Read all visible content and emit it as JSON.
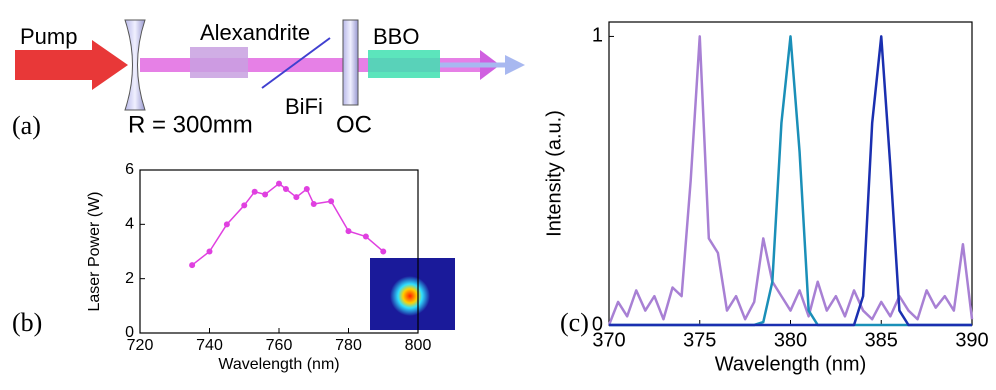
{
  "diagram": {
    "label": "(a)",
    "pump": "Pump",
    "crystal": "Alexandrite",
    "filter": "BiFi",
    "mirror": "R = 300mm",
    "coupler": "OC",
    "doubler": "BBO"
  },
  "chart_data": [
    {
      "type": "line",
      "label": "(b)",
      "x_label": "Wavelength (nm)",
      "y_label": "Laser Power (W)",
      "color": "#e040e0",
      "markers": true,
      "x": [
        735,
        740,
        745,
        750,
        753,
        756,
        760,
        762,
        765,
        768,
        770,
        775,
        780,
        785,
        790
      ],
      "values": [
        2.5,
        3.0,
        4.0,
        4.7,
        5.2,
        5.1,
        5.5,
        5.3,
        5.0,
        5.3,
        4.75,
        4.85,
        3.75,
        3.55,
        3.0
      ],
      "xlim": [
        720,
        800
      ],
      "xticks": [
        720,
        740,
        760,
        780,
        800
      ],
      "ylim": [
        0,
        6
      ],
      "yticks": [
        0,
        2,
        4,
        6
      ]
    },
    {
      "type": "line",
      "label": "(c)",
      "x_label": "Wavelength (nm)",
      "y_label": "Intensity (a.u.)",
      "markers": false,
      "x": [
        370,
        370.5,
        371,
        371.5,
        372,
        372.5,
        373,
        373.5,
        374,
        374.5,
        375,
        375.5,
        376,
        376.5,
        377,
        377.5,
        378,
        378.5,
        379,
        379.5,
        380,
        380.5,
        381,
        381.5,
        382,
        382.5,
        383,
        383.5,
        384,
        384.5,
        385,
        385.5,
        386,
        386.5,
        387,
        387.5,
        388,
        388.5,
        389,
        389.5,
        390
      ],
      "series": [
        {
          "color": "#a880d4",
          "values": [
            0,
            0.08,
            0.03,
            0.12,
            0.05,
            0.1,
            0.02,
            0.13,
            0.1,
            0.5,
            1.0,
            0.3,
            0.25,
            0.05,
            0.1,
            0.02,
            0.08,
            0.3,
            0.15,
            0.1,
            0.05,
            0.12,
            0.03,
            0.15,
            0.05,
            0.1,
            0.03,
            0.12,
            0.05,
            0.02,
            0.08,
            0.03,
            0.1,
            0.05,
            0.02,
            0.12,
            0.06,
            0.1,
            0.05,
            0.28,
            0.02
          ]
        },
        {
          "color": "#1a8fb8",
          "values": [
            0,
            0,
            0,
            0,
            0,
            0,
            0,
            0,
            0,
            0,
            0,
            0,
            0,
            0,
            0,
            0,
            0,
            0.01,
            0.15,
            0.7,
            1.0,
            0.6,
            0.05,
            0,
            0,
            0,
            0,
            0,
            0,
            0,
            0,
            0,
            0,
            0,
            0,
            0,
            0,
            0,
            0,
            0,
            0
          ]
        },
        {
          "color": "#1a2fb0",
          "values": [
            0,
            0,
            0,
            0,
            0,
            0,
            0,
            0,
            0,
            0,
            0,
            0,
            0,
            0,
            0,
            0,
            0,
            0,
            0,
            0,
            0,
            0,
            0,
            0,
            0,
            0,
            0,
            0,
            0.1,
            0.7,
            1.0,
            0.55,
            0.05,
            0,
            0,
            0,
            0,
            0,
            0,
            0,
            0
          ]
        }
      ],
      "xlim": [
        370,
        390
      ],
      "xticks": [
        370,
        375,
        380,
        385,
        390
      ],
      "ylim": [
        0,
        1.05
      ],
      "yticks": [
        0,
        1
      ]
    }
  ]
}
